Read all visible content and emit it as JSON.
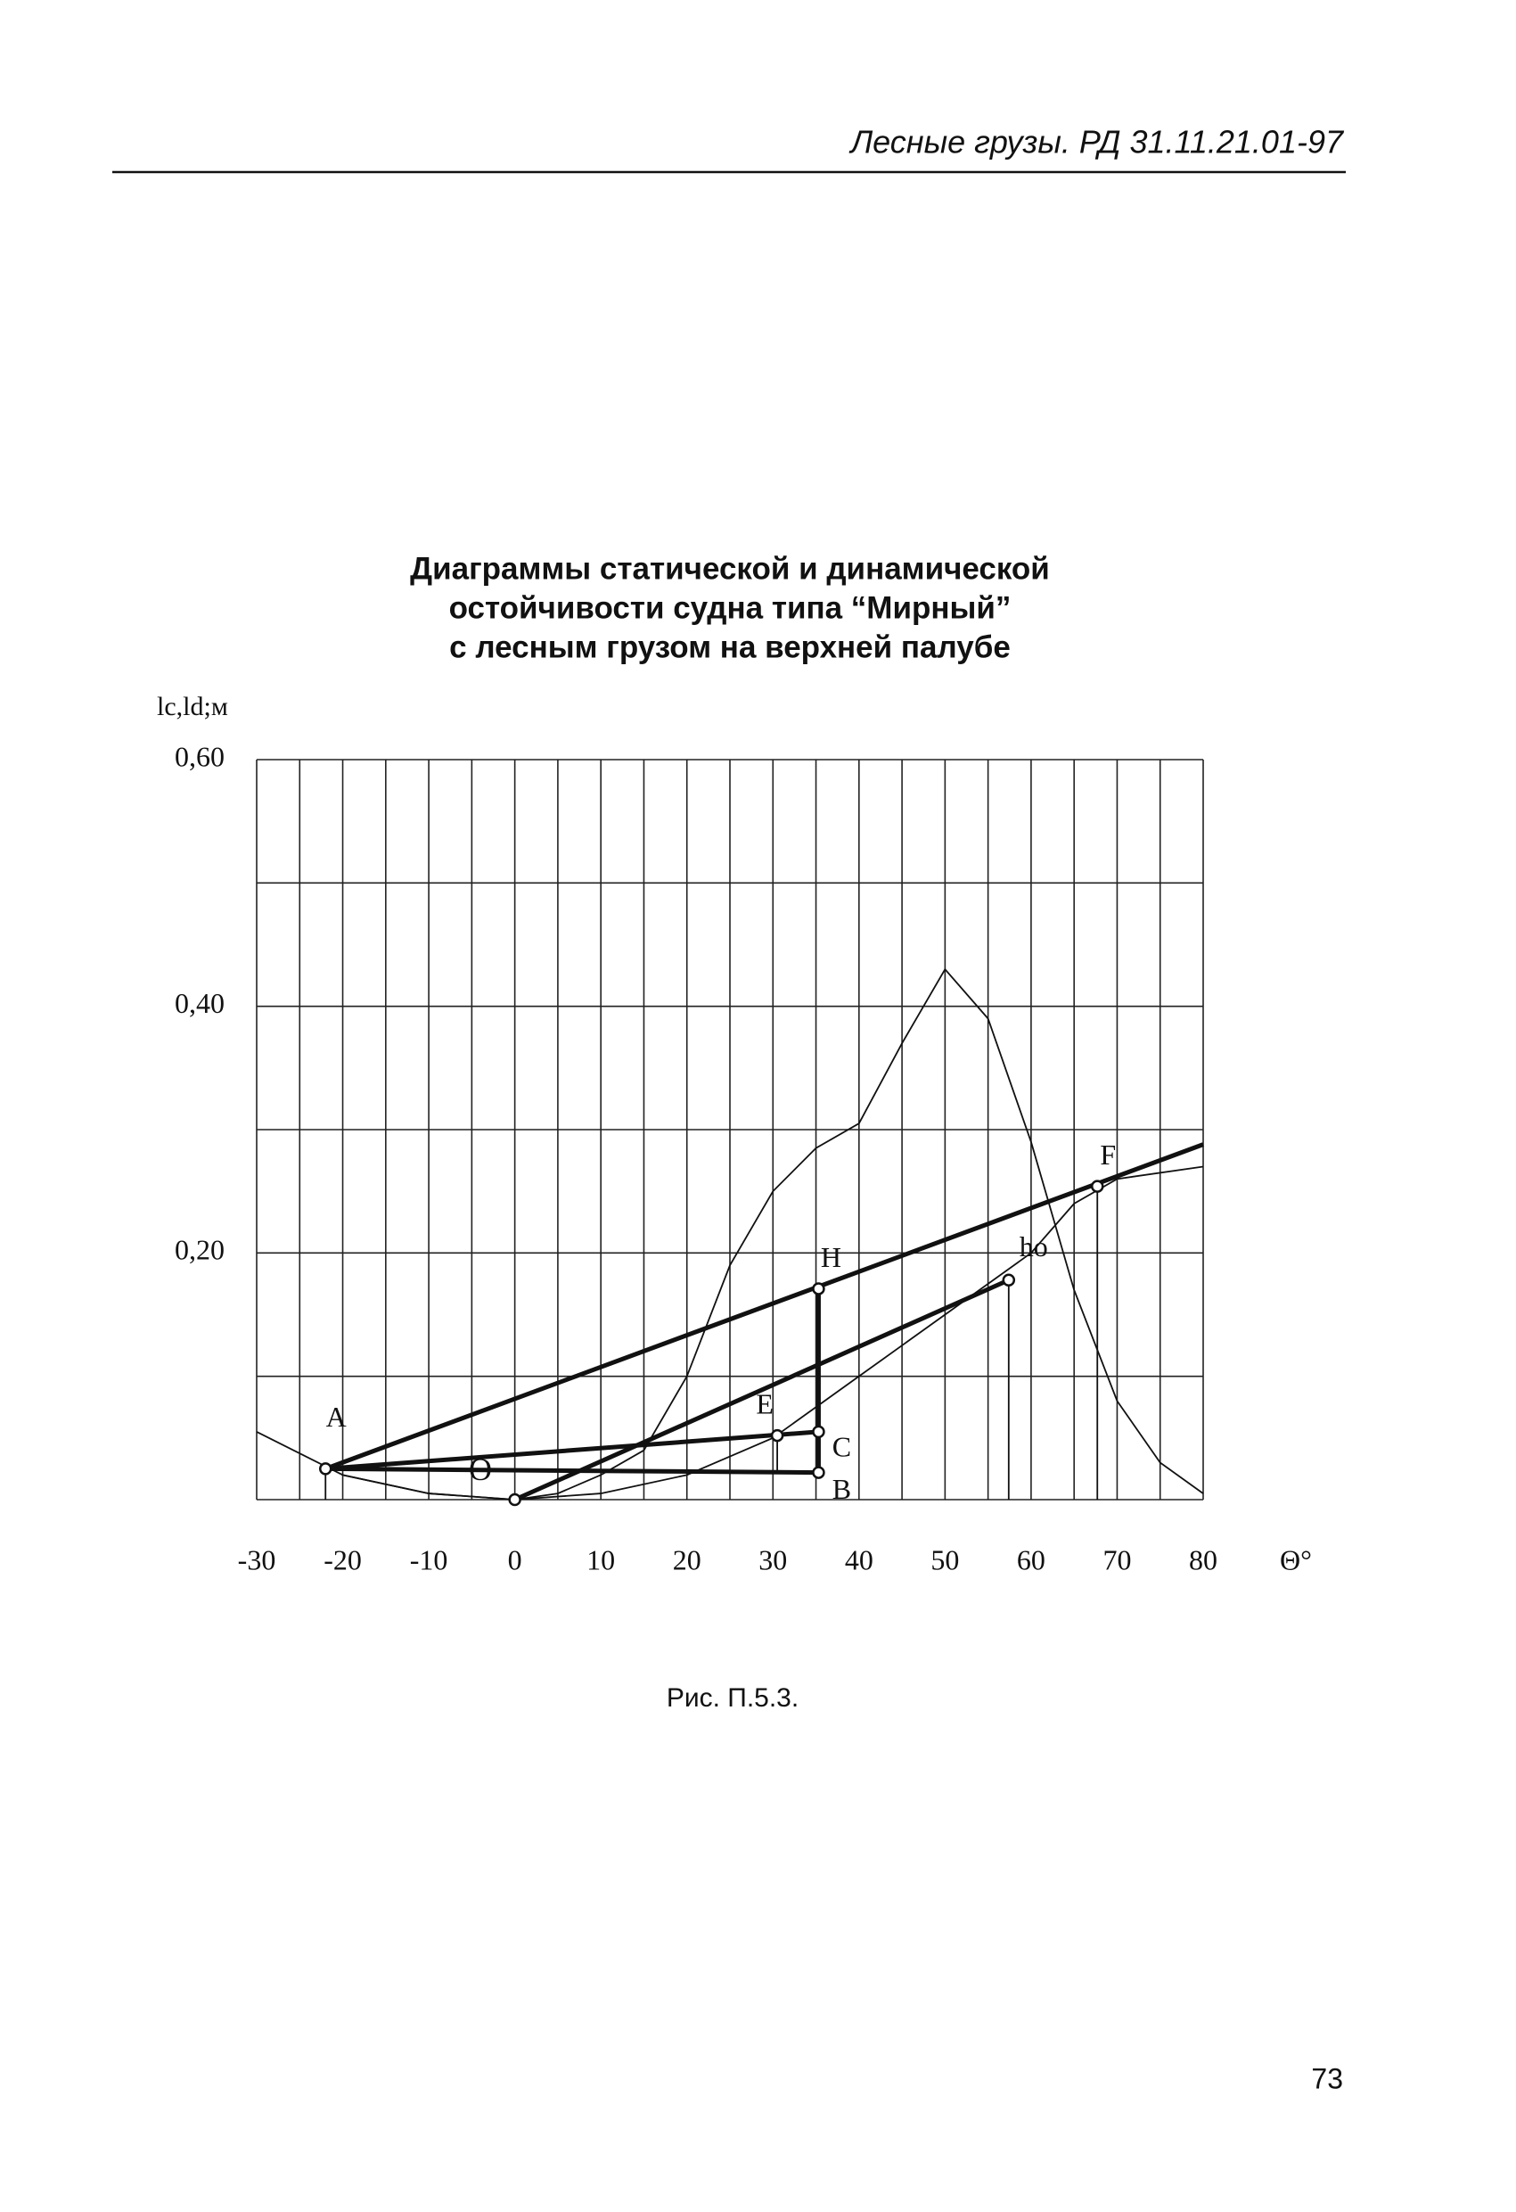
{
  "header": "Лесные грузы. РД 31.11.21.01-97",
  "chart_data": {
    "type": "line",
    "title": [
      "Диаграммы статической и динамической",
      "остойчивости судна типа “Мирный”",
      "с лесным грузом на верхней палубе"
    ],
    "y_label": "lc,ld;м",
    "x_label": "Θ°",
    "xlim": [
      -30,
      80
    ],
    "ylim": [
      0,
      0.6
    ],
    "xticks": [
      -30,
      -20,
      -10,
      0,
      10,
      20,
      30,
      40,
      50,
      60,
      70,
      80
    ],
    "yticks": [
      {
        "value": 0.2,
        "label": "0,20"
      },
      {
        "value": 0.4,
        "label": "0,40"
      },
      {
        "value": 0.6,
        "label": "0,60"
      }
    ],
    "xgrid": [
      -30,
      -25,
      -20,
      -15,
      -10,
      -5,
      0,
      5,
      10,
      15,
      20,
      25,
      30,
      35,
      40,
      45,
      50,
      55,
      60,
      65,
      70,
      75,
      80
    ],
    "ygrid": [
      0,
      0.1,
      0.2,
      0.3,
      0.4,
      0.5,
      0.6
    ],
    "color": "#111111",
    "series": [
      {
        "style": "thin",
        "x": [
          -30,
          -20,
          -10,
          0,
          5,
          10,
          15,
          20,
          25,
          30,
          35,
          40,
          45,
          50,
          55,
          60,
          65,
          70,
          75,
          80
        ],
        "values": [
          0.055,
          0.02,
          0.005,
          0,
          0.005,
          0.02,
          0.04,
          0.1,
          0.19,
          0.25,
          0.285,
          0.305,
          0.37,
          0.43,
          0.39,
          0.29,
          0.17,
          0.08,
          0.03,
          0.005
        ]
      },
      {
        "style": "thin",
        "x": [
          -20,
          -10,
          0,
          10,
          20,
          30,
          40,
          50,
          60,
          65,
          70,
          80
        ],
        "values": [
          0.02,
          0.005,
          0,
          0.005,
          0.02,
          0.05,
          0.1,
          0.15,
          0.2,
          0.24,
          0.26,
          0.27
        ]
      },
      {
        "style": "thick",
        "x": [
          -22,
          80
        ],
        "values": [
          0.025,
          0.288
        ]
      },
      {
        "style": "thick",
        "x": [
          0,
          57.4
        ],
        "values": [
          0,
          0.178
        ]
      },
      {
        "style": "thick",
        "x": [
          -22,
          35.3
        ],
        "values": [
          0.025,
          0.055
        ]
      },
      {
        "style": "thick",
        "x": [
          -22,
          35.3
        ],
        "values": [
          0.025,
          0.022
        ]
      },
      {
        "style": "thick",
        "x": [
          35.3,
          35.3
        ],
        "values": [
          0.171,
          0.022
        ]
      },
      {
        "style": "thin",
        "x": [
          57.4,
          57.4
        ],
        "values": [
          0.178,
          0
        ]
      },
      {
        "style": "thin",
        "x": [
          67.7,
          67.7
        ],
        "values": [
          0.254,
          0
        ]
      },
      {
        "style": "thin",
        "x": [
          30.5,
          30.5
        ],
        "values": [
          0.052,
          0.022
        ]
      },
      {
        "style": "thin",
        "x": [
          -22,
          -22
        ],
        "values": [
          0.025,
          0
        ]
      }
    ],
    "markers": [
      {
        "label": "A",
        "x": -22,
        "y": 0.025
      },
      {
        "label": "H",
        "x": 35.3,
        "y": 0.171
      },
      {
        "label": "F",
        "x": 67.7,
        "y": 0.254
      },
      {
        "label": "ho",
        "x": 57.4,
        "y": 0.178
      },
      {
        "label": "C",
        "x": 35.3,
        "y": 0.055
      },
      {
        "label": "B",
        "x": 35.3,
        "y": 0.022
      },
      {
        "label": "E",
        "x": 30.5,
        "y": 0.052
      },
      {
        "x": 0,
        "y": 0
      }
    ],
    "annotations": [
      {
        "text": "O",
        "x": -4,
        "y": 0.022
      }
    ]
  },
  "caption": "Рис. П.5.3.",
  "page_number": "73"
}
